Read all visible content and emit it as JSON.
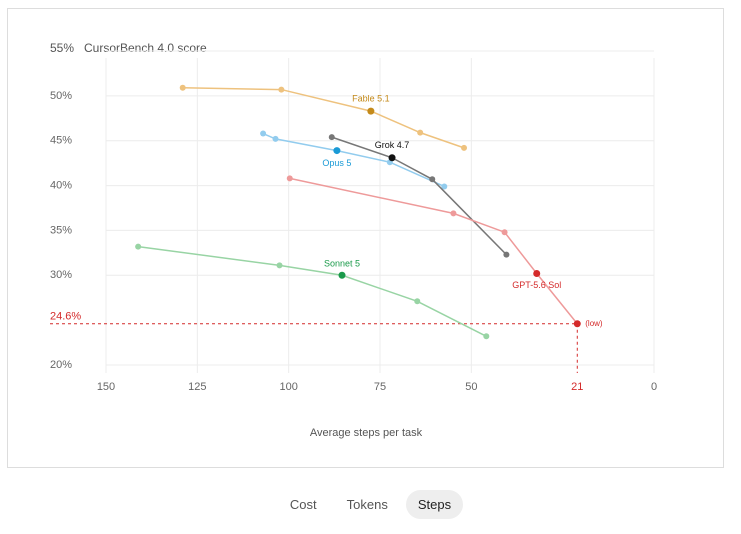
{
  "chart_data": {
    "type": "line",
    "y_axis_title": "CursorBench 4.0 score",
    "x_axis_title": "Average steps per task",
    "xlim": [
      150,
      0
    ],
    "ylim": [
      20,
      55
    ],
    "xticks": [
      150,
      125,
      100,
      75,
      50,
      21,
      0
    ],
    "yticks": [
      {
        "value": 20,
        "label": "20%"
      },
      {
        "value": 30,
        "label": "30%"
      },
      {
        "value": 35,
        "label": "35%"
      },
      {
        "value": 40,
        "label": "40%"
      },
      {
        "value": 45,
        "label": "45%"
      },
      {
        "value": 50,
        "label": "50%"
      },
      {
        "value": 55,
        "label": "55%"
      }
    ],
    "grid": true,
    "reference": {
      "value": 24.6,
      "label": "24.6%",
      "x": 21,
      "annotation": "(low)",
      "color": "#d42a2a"
    },
    "series": [
      {
        "name": "Fable 5.1",
        "color": "#eec27e",
        "highlight_color": "#c48a1a",
        "highlight": [
          2
        ],
        "x": [
          129,
          102,
          77.5,
          64,
          52
        ],
        "values": [
          50.9,
          50.7,
          48.3,
          45.9,
          44.2
        ]
      },
      {
        "name": "Opus 5",
        "color": "#92ccee",
        "highlight_color": "#1a9ad6",
        "highlight": [
          2
        ],
        "x": [
          107,
          103.6,
          86.8,
          72.3,
          57.4
        ],
        "values": [
          45.8,
          45.2,
          43.9,
          42.6,
          39.9
        ]
      },
      {
        "name": "Grok 4.7",
        "color": "#777777",
        "highlight_color": "#111111",
        "highlight": [
          1
        ],
        "x": [
          88.2,
          71.7,
          60.7,
          40.4
        ],
        "values": [
          45.4,
          43.1,
          40.7,
          32.3
        ]
      },
      {
        "name": "GPT-5.6 Sol",
        "color": "#ee9a9a",
        "highlight_color": "#d42a2a",
        "highlight": [
          3,
          4
        ],
        "x": [
          99.7,
          54.9,
          40.9,
          32.1,
          21
        ],
        "values": [
          40.8,
          36.9,
          34.8,
          30.2,
          24.6
        ]
      },
      {
        "name": "Sonnet 5",
        "color": "#98d4a4",
        "highlight_color": "#1a9a4a",
        "highlight": [
          2
        ],
        "x": [
          141.2,
          102.5,
          85.4,
          64.8,
          45.9
        ],
        "values": [
          33.2,
          31.1,
          30,
          27.1,
          23.2
        ]
      }
    ]
  },
  "tabs": [
    {
      "label": "Cost",
      "active": false
    },
    {
      "label": "Tokens",
      "active": false
    },
    {
      "label": "Steps",
      "active": true
    }
  ]
}
